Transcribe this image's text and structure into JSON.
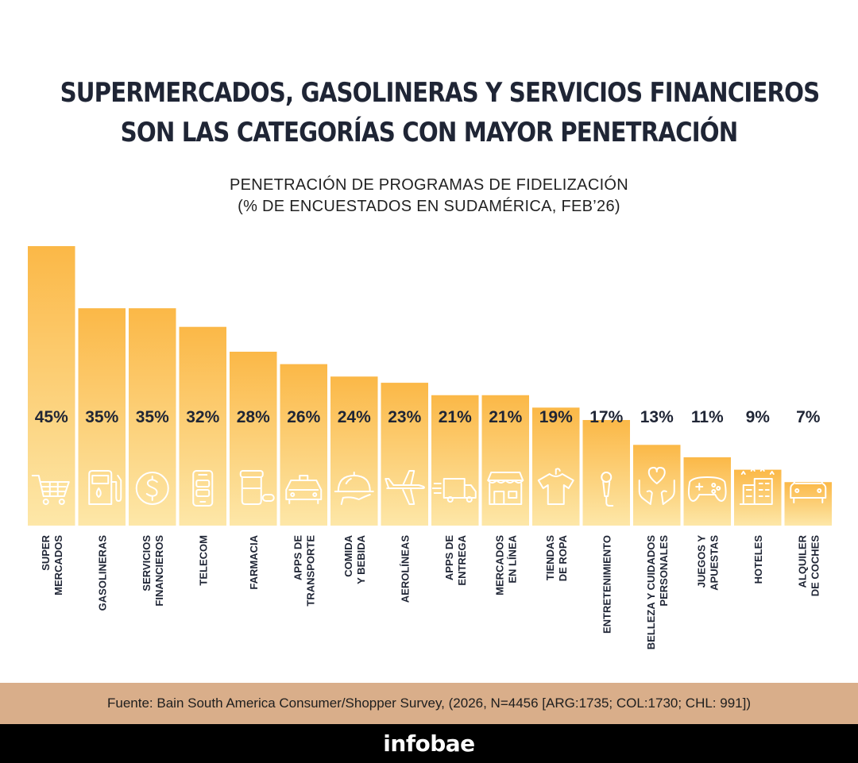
{
  "header": {
    "title_line1": "SUPERMERCADOS, GASOLINERAS Y SERVICIOS FINANCIEROS",
    "title_line2": "SON LAS CATEGORÍAS CON MAYOR PENETRACIÓN",
    "subtitle_line1": "PENETRACIÓN DE PROGRAMAS DE FIDELIZACIÓN",
    "subtitle_line2": "(% DE ENCUESTADOS EN SUDAMÉRICA, FEB’26)"
  },
  "chart_data": {
    "type": "bar",
    "categories": [
      [
        "SUPER",
        "MERCADOS"
      ],
      [
        "GASOLINERAS"
      ],
      [
        "SERVICIOS",
        "FINANCIEROS"
      ],
      [
        "TELECOM"
      ],
      [
        "FARMACIA"
      ],
      [
        "APPS DE",
        "TRANSPORTE"
      ],
      [
        "COMIDA",
        "Y BEBIDA"
      ],
      [
        "AEROLÍNEAS"
      ],
      [
        "APPS DE",
        "ENTREGA"
      ],
      [
        "MERCADOS",
        "EN LÍNEA"
      ],
      [
        "TIENDAS",
        "DE ROPA"
      ],
      [
        "ENTRETENIMIENTO"
      ],
      [
        "BELLEZA Y CUIDADOS",
        "PERSONALES"
      ],
      [
        "JUEGOS Y",
        "APUESTAS"
      ],
      [
        "HOTELES"
      ],
      [
        "ALQUILER",
        "DE COCHES"
      ]
    ],
    "values": [
      45,
      35,
      35,
      32,
      28,
      26,
      24,
      23,
      21,
      21,
      19,
      17,
      13,
      11,
      9,
      7
    ],
    "value_labels": [
      "45%",
      "35%",
      "35%",
      "32%",
      "28%",
      "26%",
      "24%",
      "23%",
      "21%",
      "21%",
      "19%",
      "17%",
      "13%",
      "11%",
      "9%",
      "7%"
    ],
    "icons": [
      "cart-icon",
      "fuel-pump-icon",
      "dollar-coin-icon",
      "phone-icon",
      "pill-jar-icon",
      "taxi-icon",
      "cloche-icon",
      "airplane-icon",
      "delivery-truck-icon",
      "storefront-icon",
      "tshirt-icon",
      "microphone-icon",
      "heart-hands-icon",
      "gamepad-icon",
      "hotel-icon",
      "car-icon"
    ],
    "colors": {
      "bar_top": "#fbb847",
      "bar_bottom": "#fde7a8",
      "icon": "#ffffff",
      "text": "#1f2535"
    }
  },
  "footer": {
    "source": "Fuente: Bain South America Consumer/Shopper Survey, (2026, N=4456 [ARG:1735; COL:1730; CHL: 991])",
    "brand": "infobae"
  }
}
